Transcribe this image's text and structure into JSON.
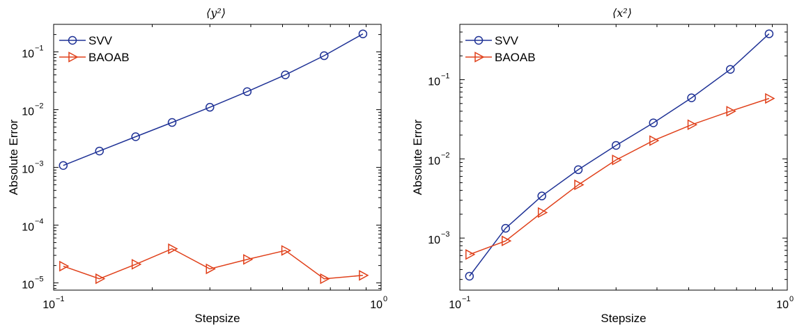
{
  "chart_data": [
    {
      "type": "line",
      "title": "⟨y²⟩",
      "xlabel": "Stepsize",
      "ylabel": "Absolute Error",
      "xscale": "log",
      "yscale": "log",
      "xlim": [
        0.1,
        1
      ],
      "ylim": [
        7.5e-06,
        0.3
      ],
      "x_ticks": [
        {
          "value": 0.1,
          "base": "10",
          "exp": "−1"
        },
        {
          "value": 1,
          "base": "10",
          "exp": "0"
        }
      ],
      "y_ticks": [
        {
          "value": 1e-05,
          "base": "10",
          "exp": "−5"
        },
        {
          "value": 0.0001,
          "base": "10",
          "exp": "−4"
        },
        {
          "value": 0.001,
          "base": "10",
          "exp": "−3"
        },
        {
          "value": 0.01,
          "base": "10",
          "exp": "−2"
        },
        {
          "value": 0.1,
          "base": "10",
          "exp": "−1"
        }
      ],
      "legend_position": "top-left",
      "grid": false,
      "x": [
        0.107,
        0.138,
        0.178,
        0.23,
        0.3,
        0.39,
        0.51,
        0.67,
        0.88
      ],
      "series": [
        {
          "name": "SVV",
          "color": "#1f3296",
          "marker": "circle",
          "values": [
            0.00108,
            0.00192,
            0.0034,
            0.006,
            0.011,
            0.0205,
            0.04,
            0.086,
            0.205
          ]
        },
        {
          "name": "BAOAB",
          "color": "#e0401a",
          "marker": "triangle-right",
          "values": [
            1.95e-05,
            1.18e-05,
            2.1e-05,
            3.9e-05,
            1.75e-05,
            2.55e-05,
            3.65e-05,
            1.18e-05,
            1.35e-05
          ]
        }
      ]
    },
    {
      "type": "line",
      "title": "⟨x²⟩",
      "xlabel": "Stepsize",
      "ylabel": "Absolute Error",
      "xscale": "log",
      "yscale": "log",
      "xlim": [
        0.1,
        1
      ],
      "ylim": [
        0.00022,
        0.5
      ],
      "x_ticks": [
        {
          "value": 0.1,
          "base": "10",
          "exp": "−1"
        },
        {
          "value": 1,
          "base": "10",
          "exp": "0"
        }
      ],
      "y_ticks": [
        {
          "value": 0.001,
          "base": "10",
          "exp": "−3"
        },
        {
          "value": 0.01,
          "base": "10",
          "exp": "−2"
        },
        {
          "value": 0.1,
          "base": "10",
          "exp": "−1"
        }
      ],
      "legend_position": "top-left",
      "grid": false,
      "x": [
        0.107,
        0.138,
        0.178,
        0.23,
        0.3,
        0.39,
        0.51,
        0.67,
        0.88
      ],
      "series": [
        {
          "name": "SVV",
          "color": "#1f3296",
          "marker": "circle",
          "values": [
            0.00033,
            0.00133,
            0.0034,
            0.0073,
            0.0148,
            0.0285,
            0.059,
            0.135,
            0.38
          ]
        },
        {
          "name": "BAOAB",
          "color": "#e0401a",
          "marker": "triangle-right",
          "values": [
            0.00062,
            0.00092,
            0.0021,
            0.0047,
            0.0097,
            0.017,
            0.027,
            0.04,
            0.058
          ]
        }
      ]
    }
  ]
}
